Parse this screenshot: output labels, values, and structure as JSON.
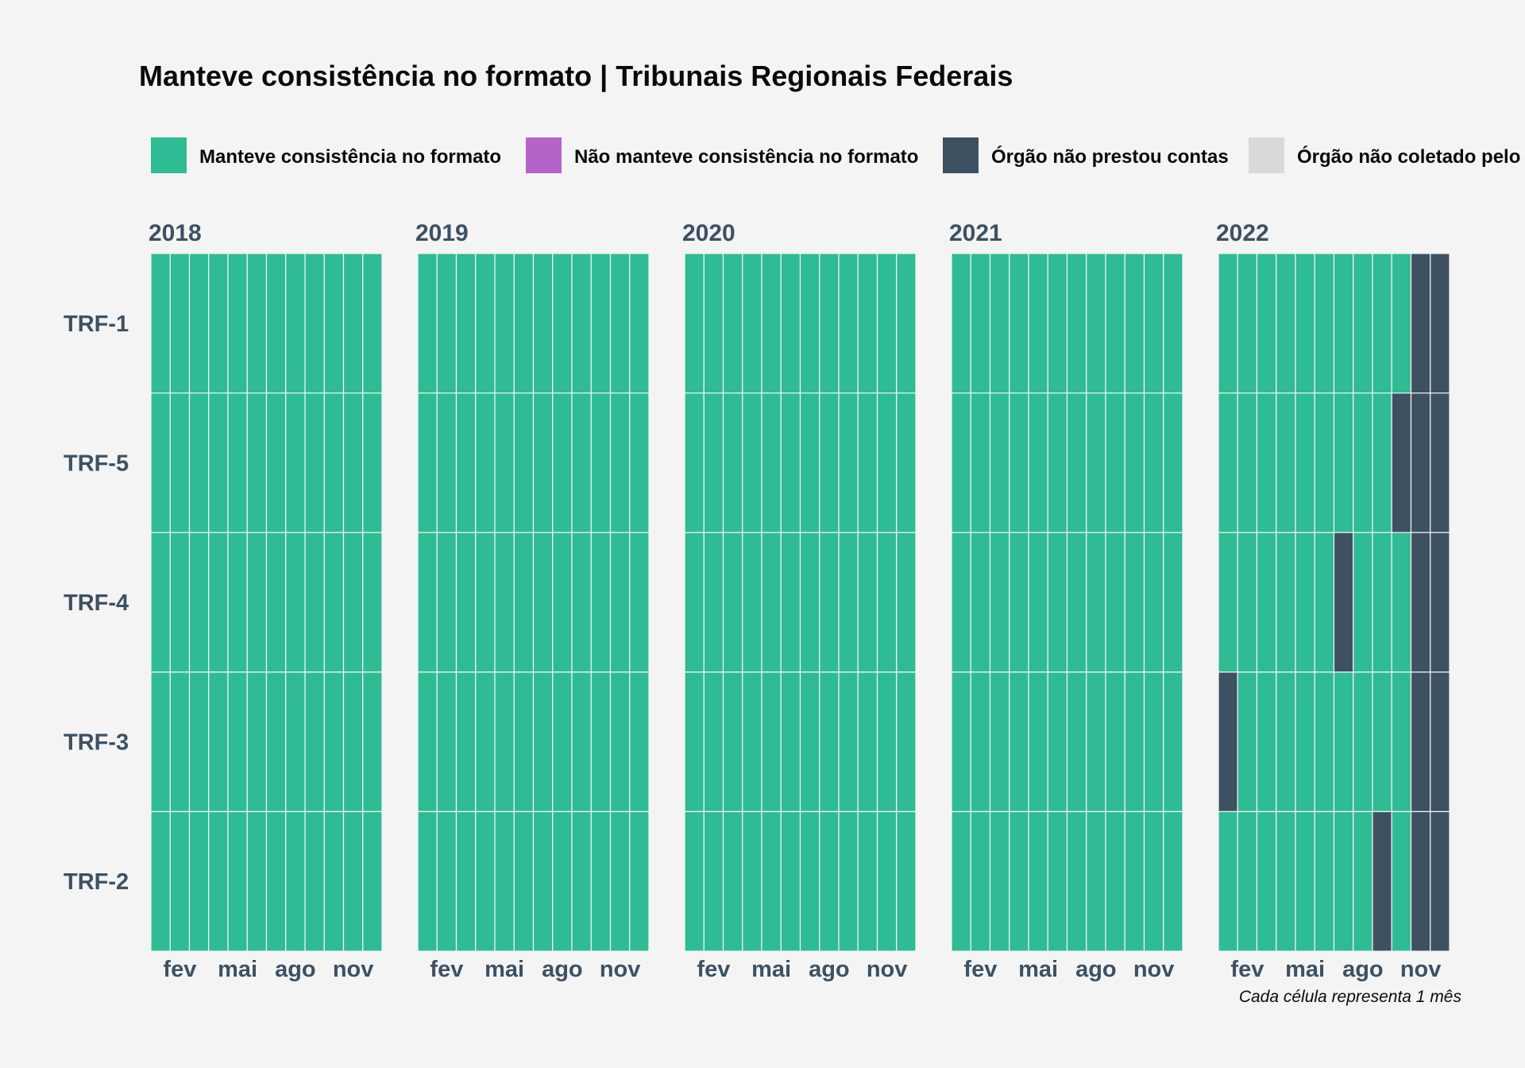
{
  "chart_data": {
    "type": "heatmap",
    "title": "Manteve consistência no formato | Tribunais Regionais Federais",
    "caption": "Cada célula representa 1 mês",
    "legend": {
      "placement": "top",
      "items": [
        {
          "key": "ok",
          "label": "Manteve consistência no formato",
          "color": "#2fbb94"
        },
        {
          "key": "no",
          "label": "Não manteve consistência no formato",
          "color": "#b464c8"
        },
        {
          "key": "np",
          "label": "Órgão não prestou contas",
          "color": "#3d5163"
        },
        {
          "key": "nc",
          "label": "Órgão não coletado pelo",
          "color": "#d9d9d9"
        }
      ]
    },
    "rows": [
      "TRF-1",
      "TRF-5",
      "TRF-4",
      "TRF-3",
      "TRF-2"
    ],
    "years": [
      "2018",
      "2019",
      "2020",
      "2021",
      "2022"
    ],
    "months": [
      1,
      2,
      3,
      4,
      5,
      6,
      7,
      8,
      9,
      10,
      11,
      12
    ],
    "x_ticks": [
      {
        "month": 2,
        "label": "fev"
      },
      {
        "month": 5,
        "label": "mai"
      },
      {
        "month": 8,
        "label": "ago"
      },
      {
        "month": 11,
        "label": "nov"
      }
    ],
    "default_status": "ok",
    "exceptions": [
      {
        "year": "2022",
        "row": "TRF-1",
        "months": [
          11,
          12
        ],
        "status": "np"
      },
      {
        "year": "2022",
        "row": "TRF-5",
        "months": [
          10,
          11,
          12
        ],
        "status": "np"
      },
      {
        "year": "2022",
        "row": "TRF-4",
        "months": [
          7,
          11,
          12
        ],
        "status": "np"
      },
      {
        "year": "2022",
        "row": "TRF-3",
        "months": [
          1,
          11,
          12
        ],
        "status": "np"
      },
      {
        "year": "2022",
        "row": "TRF-2",
        "months": [
          9,
          11,
          12
        ],
        "status": "np"
      }
    ]
  }
}
